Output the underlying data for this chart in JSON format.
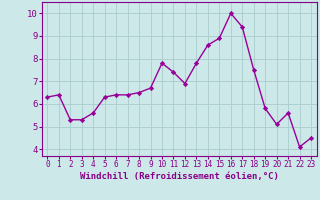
{
  "x": [
    0,
    1,
    2,
    3,
    4,
    5,
    6,
    7,
    8,
    9,
    10,
    11,
    12,
    13,
    14,
    15,
    16,
    17,
    18,
    19,
    20,
    21,
    22,
    23
  ],
  "y": [
    6.3,
    6.4,
    5.3,
    5.3,
    5.6,
    6.3,
    6.4,
    6.4,
    6.5,
    6.7,
    7.8,
    7.4,
    6.9,
    7.8,
    8.6,
    8.9,
    10.0,
    9.4,
    7.5,
    5.8,
    5.1,
    5.6,
    4.1,
    4.5
  ],
  "line_color": "#990099",
  "marker": "D",
  "marker_size": 2.2,
  "linewidth": 1.0,
  "bg_color": "#cce8e8",
  "grid_color": "#aacccc",
  "xlabel": "Windchill (Refroidissement éolien,°C)",
  "xlabel_fontsize": 6.5,
  "ylabel_ticks": [
    4,
    5,
    6,
    7,
    8,
    9,
    10
  ],
  "xlim": [
    -0.5,
    23.5
  ],
  "ylim": [
    3.7,
    10.5
  ],
  "xtick_fontsize": 5.5,
  "ytick_fontsize": 6.5,
  "text_color": "#880088"
}
